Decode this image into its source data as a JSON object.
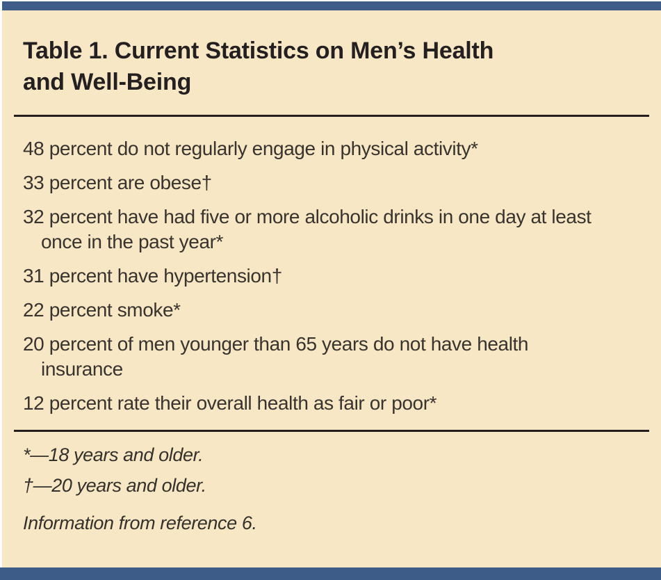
{
  "colors": {
    "panel_background": "#f8e7c4",
    "accent_bar_blue": "#3e5c88",
    "title_text": "#242021",
    "body_text": "#38332f",
    "rule": "#241f1c"
  },
  "table": {
    "title": "Table 1. Current Statistics on Men’s Health and Well-Being",
    "items": [
      "48 percent do not regularly engage in physical activity*",
      "33 percent are obese†",
      "32 percent have had five or more alcoholic drinks in one day at least once in the past year*",
      "31 percent have hypertension†",
      "22 percent smoke*",
      "20 percent of men younger than 65 years do not have health insurance",
      "12 percent rate their overall health as fair or poor*"
    ],
    "footnotes": [
      "*—18 years and older.",
      "†—20 years and older."
    ],
    "source": "Information from reference 6."
  }
}
